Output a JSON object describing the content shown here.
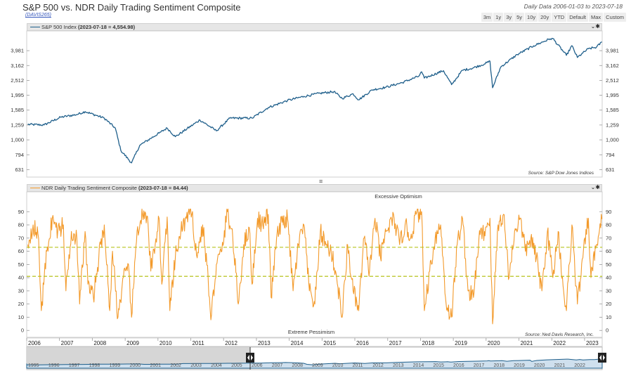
{
  "header": {
    "title": "S&P 500 vs. NDR Daily Trading Sentiment Composite",
    "code": "(DAVIS265)",
    "date_range": "Daily Data 2006-01-03 to 2023-07-18",
    "range_buttons": [
      "3m",
      "1y",
      "3y",
      "5y",
      "10y",
      "20y",
      "YTD",
      "Default",
      "Max",
      "Custom"
    ]
  },
  "top_panel": {
    "legend_name": "S&P 500 Index",
    "legend_value": "(2023-07-18 = 4,554.98)",
    "source": "Source:    S&P Dow Jones Indices",
    "controls": "⌄✱"
  },
  "bottom_panel": {
    "legend_name": "NDR Daily Trading Sentiment Composite",
    "legend_value": "(2023-07-18 = 84.44)",
    "source": "Source:    Ned Davis Research, Inc.",
    "controls": "⌄✱"
  },
  "divider_icon": "≡",
  "colors": {
    "spx": "#1f5f8b",
    "sentiment": "#f39a2b",
    "threshold": "#b8c41e"
  },
  "navigator": {
    "left_years": [
      "1995",
      "1996",
      "1997",
      "1998",
      "1999",
      "2000",
      "2001",
      "2002",
      "2003",
      "2004",
      "2005"
    ],
    "right_years": [
      "2006",
      "2007",
      "2008",
      "2009",
      "2010",
      "2011",
      "2012",
      "2013",
      "2014",
      "2015",
      "2016",
      "2017",
      "2018",
      "2019",
      "2020",
      "2021",
      "2022"
    ],
    "selected_start": "2006-01-03",
    "selected_end": "2023-07-18"
  },
  "chart_data": [
    {
      "type": "line",
      "series": [
        {
          "name": "S&P 500 Index",
          "x": [
            "2006-01",
            "2006-07",
            "2007-01",
            "2007-07",
            "2007-10",
            "2008-05",
            "2008-09",
            "2008-11",
            "2009-03",
            "2009-06",
            "2010-01",
            "2010-04",
            "2010-07",
            "2011-04",
            "2011-10",
            "2012-03",
            "2012-11",
            "2013-05",
            "2013-12",
            "2014-06",
            "2014-12",
            "2015-05",
            "2015-08",
            "2015-12",
            "2016-02",
            "2016-07",
            "2016-12",
            "2017-06",
            "2017-12",
            "2018-01",
            "2018-02",
            "2018-09",
            "2018-12",
            "2019-04",
            "2019-07",
            "2019-12",
            "2020-02",
            "2020-03",
            "2020-06",
            "2020-12",
            "2021-06",
            "2021-12",
            "2022-01",
            "2022-06",
            "2022-08",
            "2022-10",
            "2022-12",
            "2023-02",
            "2023-05",
            "2023-07"
          ],
          "y": [
            1270,
            1260,
            1420,
            1480,
            1550,
            1400,
            1200,
            850,
            700,
            920,
            1110,
            1200,
            1050,
            1360,
            1150,
            1400,
            1400,
            1650,
            1840,
            1960,
            2060,
            2110,
            1900,
            2040,
            1860,
            2170,
            2260,
            2430,
            2680,
            2870,
            2600,
            2920,
            2350,
            2940,
            3010,
            3240,
            3380,
            2240,
            3100,
            3750,
            4290,
            4780,
            4800,
            3700,
            4300,
            3580,
            3840,
            4100,
            4200,
            4555
          ]
        }
      ],
      "y_axis_ticks": [
        "631",
        "794",
        "1,000",
        "1,259",
        "1,585",
        "1,995",
        "2,512",
        "3,162",
        "3,981"
      ],
      "y_scale": "log",
      "ylim": [
        600,
        4900
      ],
      "xlim": [
        "2006-01-03",
        "2023-07-18"
      ],
      "grid": false
    },
    {
      "type": "line",
      "series": [
        {
          "name": "NDR Daily Trading Sentiment Composite",
          "x": [
            "2006-01",
            "2006-03",
            "2006-05",
            "2006-06",
            "2006-08",
            "2006-10",
            "2006-12",
            "2007-02",
            "2007-03",
            "2007-05",
            "2007-07",
            "2007-08",
            "2007-10",
            "2007-11",
            "2008-01",
            "2008-03",
            "2008-05",
            "2008-07",
            "2008-08",
            "2008-10",
            "2008-12",
            "2009-02",
            "2009-03",
            "2009-05",
            "2009-07",
            "2009-09",
            "2009-10",
            "2010-01",
            "2010-02",
            "2010-04",
            "2010-05",
            "2010-07",
            "2010-09",
            "2010-11",
            "2011-01",
            "2011-03",
            "2011-05",
            "2011-07",
            "2011-08",
            "2011-10",
            "2011-12",
            "2012-02",
            "2012-04",
            "2012-06",
            "2012-08",
            "2012-10",
            "2012-11",
            "2013-01",
            "2013-03",
            "2013-05",
            "2013-06",
            "2013-08",
            "2013-10",
            "2013-12",
            "2014-02",
            "2014-04",
            "2014-06",
            "2014-08",
            "2014-10",
            "2014-12",
            "2015-02",
            "2015-04",
            "2015-06",
            "2015-08",
            "2015-10",
            "2015-12",
            "2016-02",
            "2016-04",
            "2016-06",
            "2016-08",
            "2016-10",
            "2016-12",
            "2017-03",
            "2017-05",
            "2017-07",
            "2017-09",
            "2017-11",
            "2018-01",
            "2018-02",
            "2018-04",
            "2018-06",
            "2018-08",
            "2018-10",
            "2018-12",
            "2019-02",
            "2019-04",
            "2019-06",
            "2019-08",
            "2019-10",
            "2019-12",
            "2020-02",
            "2020-03",
            "2020-05",
            "2020-07",
            "2020-09",
            "2020-11",
            "2021-01",
            "2021-03",
            "2021-05",
            "2021-07",
            "2021-09",
            "2021-11",
            "2022-01",
            "2022-03",
            "2022-05",
            "2022-06",
            "2022-08",
            "2022-10",
            "2022-12",
            "2023-02",
            "2023-03",
            "2023-05",
            "2023-07"
          ],
          "y": [
            65,
            80,
            70,
            15,
            60,
            85,
            75,
            80,
            30,
            75,
            70,
            20,
            75,
            35,
            25,
            55,
            80,
            15,
            60,
            10,
            40,
            45,
            10,
            75,
            88,
            80,
            45,
            85,
            35,
            86,
            15,
            55,
            75,
            85,
            88,
            55,
            80,
            40,
            8,
            50,
            60,
            90,
            70,
            20,
            65,
            78,
            35,
            85,
            80,
            88,
            25,
            70,
            82,
            85,
            30,
            65,
            80,
            30,
            20,
            75,
            65,
            60,
            40,
            10,
            65,
            30,
            15,
            70,
            45,
            85,
            55,
            75,
            85,
            65,
            80,
            70,
            88,
            90,
            15,
            45,
            70,
            80,
            20,
            10,
            65,
            85,
            30,
            25,
            70,
            75,
            85,
            5,
            80,
            88,
            40,
            75,
            85,
            60,
            70,
            55,
            30,
            75,
            40,
            75,
            30,
            15,
            80,
            20,
            55,
            85,
            40,
            65,
            84.44
          ]
        }
      ],
      "thresholds": [
        63,
        41
      ],
      "annotations": [
        "Excessive Optimism",
        "Extreme Pessimism"
      ],
      "y_axis_ticks": [
        "0",
        "10",
        "20",
        "30",
        "40",
        "50",
        "60",
        "70",
        "80",
        "90"
      ],
      "ylim": [
        -2,
        96
      ],
      "x_axis_ticks": [
        "2006",
        "2007",
        "2008",
        "2009",
        "2010",
        "2011",
        "2012",
        "2013",
        "2014",
        "2015",
        "2016",
        "2017",
        "2018",
        "2019",
        "2020",
        "2021",
        "2022",
        "2023"
      ],
      "xlim": [
        "2006-01-03",
        "2023-07-18"
      ],
      "grid": false
    }
  ]
}
